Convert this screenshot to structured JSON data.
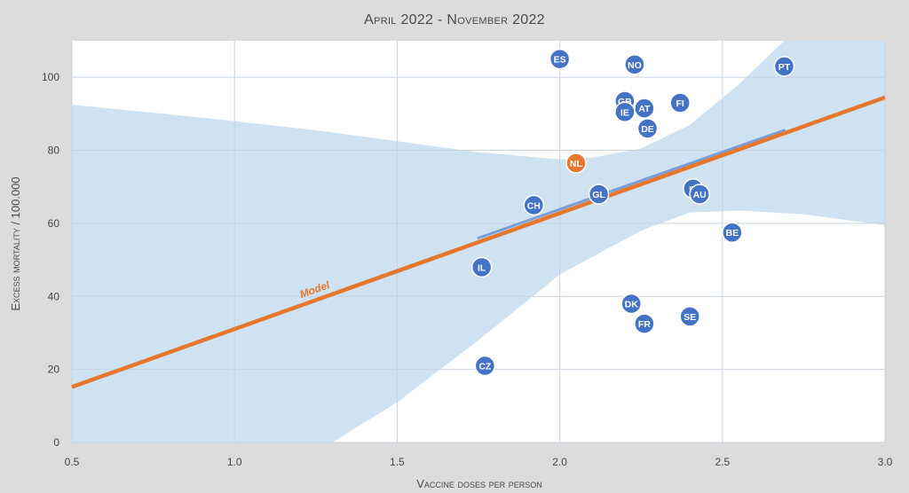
{
  "chart_data": {
    "type": "scatter",
    "title": "April 2022 - November 2022",
    "xlabel": "Vaccine doses per person",
    "ylabel": "Excess mortality / 100.000",
    "xlim": [
      0.5,
      3.0
    ],
    "ylim": [
      0,
      110
    ],
    "xticks": [
      "0.5",
      "1.0",
      "1.5",
      "2.0",
      "2.5",
      "3.0"
    ],
    "xtick_values": [
      0.5,
      1.0,
      1.5,
      2.0,
      2.5,
      3.0
    ],
    "yticks": [
      "0",
      "20",
      "40",
      "60",
      "80",
      "100"
    ],
    "ytick_values": [
      0,
      20,
      40,
      60,
      80,
      100
    ],
    "grid": true,
    "points": [
      {
        "label": "ES",
        "x": 2.0,
        "y": 105
      },
      {
        "label": "NO",
        "x": 2.23,
        "y": 103.5
      },
      {
        "label": "PT",
        "x": 2.69,
        "y": 103
      },
      {
        "label": "GB",
        "x": 2.2,
        "y": 93.5
      },
      {
        "label": "IE",
        "x": 2.2,
        "y": 90.5
      },
      {
        "label": "AT",
        "x": 2.26,
        "y": 91.5
      },
      {
        "label": "FI",
        "x": 2.37,
        "y": 93
      },
      {
        "label": "DE",
        "x": 2.27,
        "y": 86
      },
      {
        "label": "NL",
        "x": 2.05,
        "y": 76.5,
        "highlight": true
      },
      {
        "label": "GL",
        "x": 2.12,
        "y": 68
      },
      {
        "label": "CH",
        "x": 1.92,
        "y": 65
      },
      {
        "label": "IT",
        "x": 2.41,
        "y": 69.5
      },
      {
        "label": "AU",
        "x": 2.43,
        "y": 68
      },
      {
        "label": "BE",
        "x": 2.53,
        "y": 57.5
      },
      {
        "label": "IL",
        "x": 1.76,
        "y": 48
      },
      {
        "label": "DK",
        "x": 2.22,
        "y": 38
      },
      {
        "label": "SE",
        "x": 2.4,
        "y": 34.5
      },
      {
        "label": "FR",
        "x": 2.26,
        "y": 32.5
      },
      {
        "label": "CZ",
        "x": 1.77,
        "y": 21
      }
    ],
    "model_line": {
      "label": "Model",
      "x": [
        0.5,
        3.0
      ],
      "y": [
        15.2,
        94.5
      ],
      "color": "#e8772e"
    },
    "fit_line": {
      "x": [
        1.75,
        2.69
      ],
      "y": [
        56,
        85.5
      ],
      "color": "#7a9fd6"
    },
    "confidence_band": {
      "color": "#c9dff0",
      "upper": [
        [
          0.5,
          92.5
        ],
        [
          0.75,
          90.3
        ],
        [
          1.0,
          88
        ],
        [
          1.25,
          85.5
        ],
        [
          1.5,
          82.5
        ],
        [
          1.75,
          79.5
        ],
        [
          2.0,
          77.5
        ],
        [
          2.1,
          78
        ],
        [
          2.25,
          80.5
        ],
        [
          2.4,
          87
        ],
        [
          2.55,
          98
        ],
        [
          2.69,
          110
        ],
        [
          3.0,
          110
        ]
      ],
      "lower": [
        [
          0.5,
          0
        ],
        [
          1.3,
          0
        ],
        [
          1.5,
          11
        ],
        [
          1.75,
          28
        ],
        [
          2.0,
          46
        ],
        [
          2.25,
          58
        ],
        [
          2.4,
          63
        ],
        [
          2.55,
          63.5
        ],
        [
          2.75,
          62.5
        ],
        [
          3.0,
          59.5
        ]
      ]
    },
    "colors": {
      "point": "#4472c4",
      "highlight": "#e8772e",
      "point_border": "#ffffff",
      "grid": "#c8d3e0",
      "plot_bg": "#ffffff",
      "outer_bg": "#dcdcdc"
    }
  }
}
